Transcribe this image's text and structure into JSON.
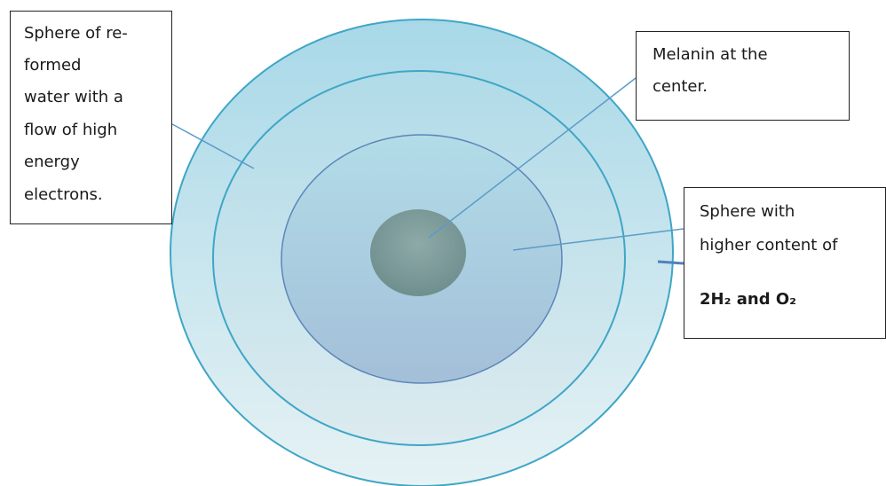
{
  "callouts": [
    {
      "lines": [
        "Sphere of re-",
        "formed",
        "water with a",
        "flow of high",
        "energy",
        "electrons."
      ]
    },
    {
      "lines": [
        "Melanin at the",
        "center."
      ]
    },
    {
      "lines": [
        "Sphere with",
        "higher content of"
      ],
      "formula": "2H₂ and O₂"
    }
  ]
}
